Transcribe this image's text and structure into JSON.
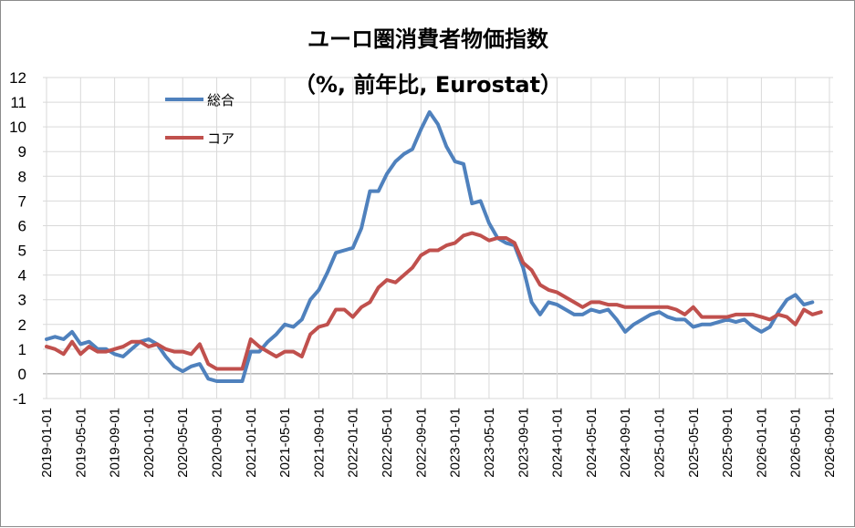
{
  "chart_data": {
    "type": "line",
    "title": "ユーロ圏消費者物価指数",
    "subtitle": "（%, 前年比, Eurostat）",
    "ylim": [
      -1,
      12
    ],
    "yticks": [
      "-1",
      "0",
      "1",
      "2",
      "3",
      "4",
      "5",
      "6",
      "7",
      "8",
      "9",
      "10",
      "11",
      "12"
    ],
    "xticks": [
      "2019-01-01",
      "2019-05-01",
      "2019-09-01",
      "2020-01-01",
      "2020-05-01",
      "2020-09-01",
      "2021-01-01",
      "2021-05-01",
      "2021-09-01",
      "2022-01-01",
      "2022-05-01",
      "2022-09-01",
      "2023-01-01",
      "2023-05-01",
      "2023-09-01",
      "2024-01-01",
      "2024-05-01",
      "2024-09-01",
      "2025-01-01",
      "2025-05-01",
      "2025-09-01",
      "2026-01-01",
      "2026-05-01",
      "2026-09-01"
    ],
    "grid": true,
    "legend_position": "top-left",
    "x_start": "2019-01-01",
    "series": [
      {
        "name": "総合",
        "color": "#4f81bd",
        "values": [
          1.4,
          1.5,
          1.4,
          1.7,
          1.2,
          1.3,
          1.0,
          1.0,
          0.8,
          0.7,
          1.0,
          1.3,
          1.4,
          1.2,
          0.7,
          0.3,
          0.1,
          0.3,
          0.4,
          -0.2,
          -0.3,
          -0.3,
          -0.3,
          -0.3,
          0.9,
          0.9,
          1.3,
          1.6,
          2.0,
          1.9,
          2.2,
          3.0,
          3.4,
          4.1,
          4.9,
          5.0,
          5.1,
          5.9,
          7.4,
          7.4,
          8.1,
          8.6,
          8.9,
          9.1,
          9.9,
          10.6,
          10.1,
          9.2,
          8.6,
          8.5,
          6.9,
          7.0,
          6.1,
          5.5,
          5.3,
          5.2,
          4.3,
          2.9,
          2.4,
          2.9,
          2.8,
          2.6,
          2.4,
          2.4,
          2.6,
          2.5,
          2.6,
          2.2,
          1.7,
          2.0,
          2.2,
          2.4,
          2.5,
          2.3,
          2.2,
          2.2,
          1.9,
          2.0,
          2.0,
          2.1,
          2.2,
          2.1,
          2.2,
          1.9,
          1.7,
          1.9,
          2.5,
          3.0,
          3.2,
          2.8,
          2.9
        ]
      },
      {
        "name": "コア",
        "color": "#c0504d",
        "values": [
          1.1,
          1.0,
          0.8,
          1.3,
          0.8,
          1.1,
          0.9,
          0.9,
          1.0,
          1.1,
          1.3,
          1.3,
          1.1,
          1.2,
          1.0,
          0.9,
          0.9,
          0.8,
          1.2,
          0.4,
          0.2,
          0.2,
          0.2,
          0.2,
          1.4,
          1.1,
          0.9,
          0.7,
          0.9,
          0.9,
          0.7,
          1.6,
          1.9,
          2.0,
          2.6,
          2.6,
          2.3,
          2.7,
          2.9,
          3.5,
          3.8,
          3.7,
          4.0,
          4.3,
          4.8,
          5.0,
          5.0,
          5.2,
          5.3,
          5.6,
          5.7,
          5.6,
          5.4,
          5.5,
          5.5,
          5.3,
          4.5,
          4.2,
          3.6,
          3.4,
          3.3,
          3.1,
          2.9,
          2.7,
          2.9,
          2.9,
          2.8,
          2.8,
          2.7,
          2.7,
          2.7,
          2.7,
          2.7,
          2.7,
          2.6,
          2.4,
          2.7,
          2.3,
          2.3,
          2.3,
          2.3,
          2.4,
          2.4,
          2.4,
          2.3,
          2.2,
          2.4,
          2.3,
          2.0,
          2.6,
          2.4,
          2.5
        ]
      }
    ]
  }
}
